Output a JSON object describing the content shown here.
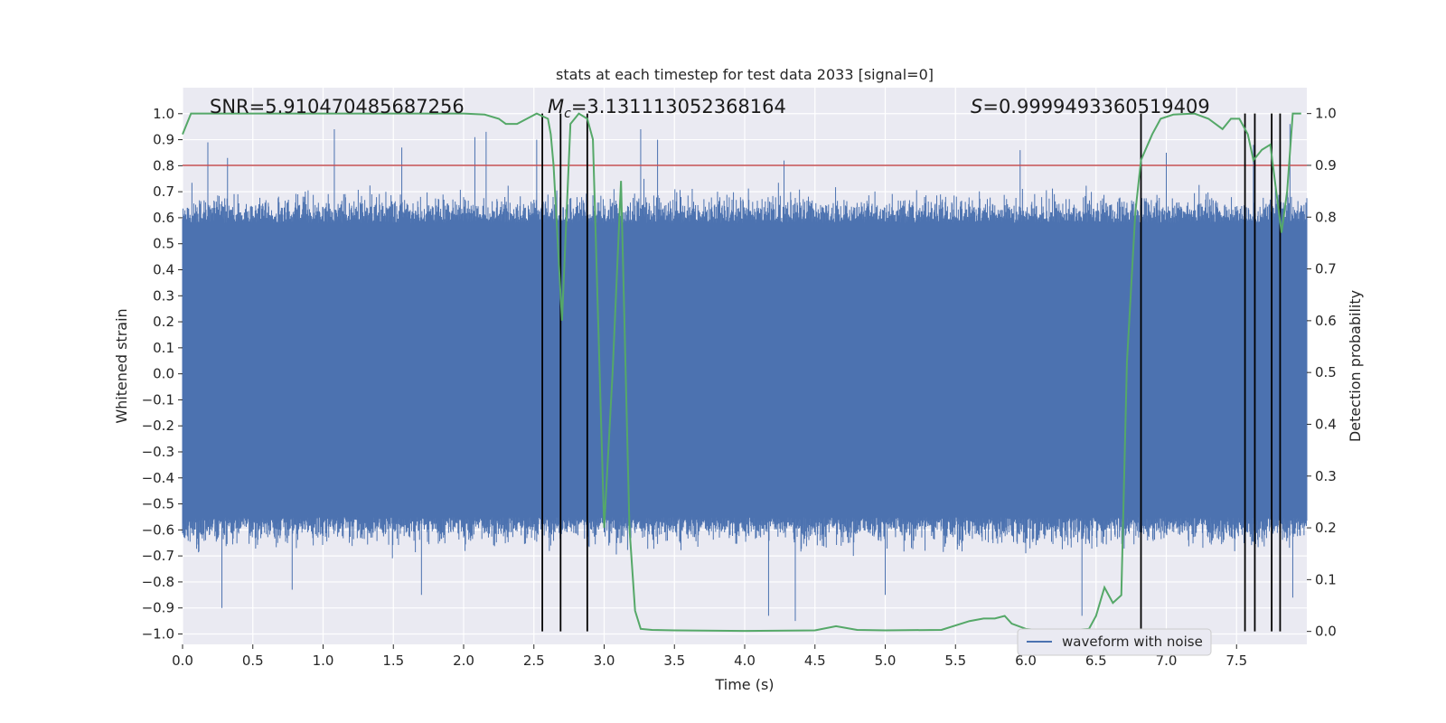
{
  "chart_data": {
    "type": "line",
    "title": "stats at each timestep for test data 2033 [signal=0]",
    "xlabel": "Time (s)",
    "ylabel_left": "Whitened strain",
    "ylabel_right": "Detection probability",
    "xlim": [
      0.0,
      8.0
    ],
    "ylim_left": [
      -1.04,
      1.1
    ],
    "ylim_right": [
      -0.025,
      1.05
    ],
    "x_ticks": [
      "0.0",
      "0.5",
      "1.0",
      "1.5",
      "2.0",
      "2.5",
      "3.0",
      "3.5",
      "4.0",
      "4.5",
      "5.0",
      "5.5",
      "6.0",
      "6.5",
      "7.0",
      "7.5"
    ],
    "y_ticks_left": [
      "1.0",
      "0.9",
      "0.8",
      "0.7",
      "0.6",
      "0.5",
      "0.4",
      "0.3",
      "0.2",
      "0.1",
      "0.0",
      "-0.1",
      "-0.2",
      "-0.3",
      "-0.4",
      "-0.5",
      "-0.6",
      "-0.7",
      "-0.8",
      "-0.9",
      "-1.0"
    ],
    "y_ticks_right": [
      "1.0",
      "0.9",
      "0.8",
      "0.7",
      "0.6",
      "0.5",
      "0.4",
      "0.3",
      "0.2",
      "0.1",
      "0.0"
    ],
    "annotations": {
      "snr_label": "SNR=5.910470485687256",
      "mc_sym": "M",
      "mc_sub": "c",
      "mc_value": "=3.131113052368164",
      "s_sym": "S",
      "s_value": "=0.9999493360519409"
    },
    "legend": {
      "label": "waveform with noise",
      "placement": "lower-right"
    },
    "threshold": 0.9,
    "waveform": {
      "name": "waveform with noise",
      "typical_amplitude": 0.58,
      "spike_times": [
        0.18,
        0.32,
        1.08,
        1.56,
        2.08,
        2.16,
        2.52,
        2.56,
        3.26,
        3.38,
        4.28,
        5.96,
        7.0,
        7.62,
        7.88
      ],
      "spike_values": [
        0.89,
        0.83,
        0.94,
        0.87,
        0.91,
        0.93,
        0.9,
        0.96,
        0.94,
        0.9,
        0.82,
        0.86,
        0.85,
        0.88,
        0.96
      ],
      "dip_times": [
        0.28,
        0.78,
        1.7,
        2.56,
        4.17,
        4.36,
        5.0,
        6.4,
        7.9
      ],
      "dip_values": [
        -0.9,
        -0.83,
        -0.85,
        -0.9,
        -0.93,
        -0.95,
        -0.85,
        -0.93,
        -0.86
      ]
    },
    "detection_probability": {
      "name": "detection probability",
      "x": [
        0.0,
        0.06,
        0.2,
        0.5,
        1.0,
        1.5,
        2.0,
        2.15,
        2.25,
        2.3,
        2.38,
        2.45,
        2.52,
        2.6,
        2.62,
        2.64,
        2.7,
        2.76,
        2.82,
        2.88,
        2.92,
        3.0,
        3.06,
        3.12,
        3.18,
        3.22,
        3.26,
        3.34,
        3.5,
        4.0,
        4.5,
        4.65,
        4.8,
        5.0,
        5.4,
        5.6,
        5.7,
        5.78,
        5.85,
        5.9,
        6.0,
        6.1,
        6.3,
        6.45,
        6.5,
        6.56,
        6.62,
        6.68,
        6.72,
        6.78,
        6.82,
        6.9,
        6.96,
        7.05,
        7.2,
        7.3,
        7.4,
        7.46,
        7.52,
        7.58,
        7.62,
        7.68,
        7.74,
        7.82,
        7.86,
        7.9,
        7.96
      ],
      "y": [
        0.96,
        1.0,
        1.0,
        1.0,
        1.0,
        1.0,
        1.0,
        0.998,
        0.99,
        0.98,
        0.98,
        0.99,
        1.0,
        0.99,
        0.96,
        0.9,
        0.6,
        0.98,
        1.0,
        0.99,
        0.95,
        0.2,
        0.5,
        0.87,
        0.2,
        0.04,
        0.005,
        0.003,
        0.002,
        0.001,
        0.002,
        0.01,
        0.003,
        0.002,
        0.003,
        0.02,
        0.025,
        0.025,
        0.03,
        0.015,
        0.005,
        0.002,
        0.002,
        0.005,
        0.03,
        0.085,
        0.055,
        0.07,
        0.52,
        0.81,
        0.91,
        0.96,
        0.99,
        0.998,
        1.0,
        0.99,
        0.97,
        0.99,
        0.99,
        0.96,
        0.91,
        0.93,
        0.94,
        0.77,
        0.85,
        1.0,
        1.0
      ]
    },
    "event_lines": [
      2.56,
      2.69,
      2.88,
      6.82,
      7.56,
      7.63,
      7.75,
      7.81
    ],
    "colors": {
      "background": "#eaeaf2",
      "grid": "#ffffff",
      "waveform": "#4c72b0",
      "detection": "#55a868",
      "threshold": "#c44e52",
      "event_line": "#000000",
      "text": "#262626"
    }
  }
}
